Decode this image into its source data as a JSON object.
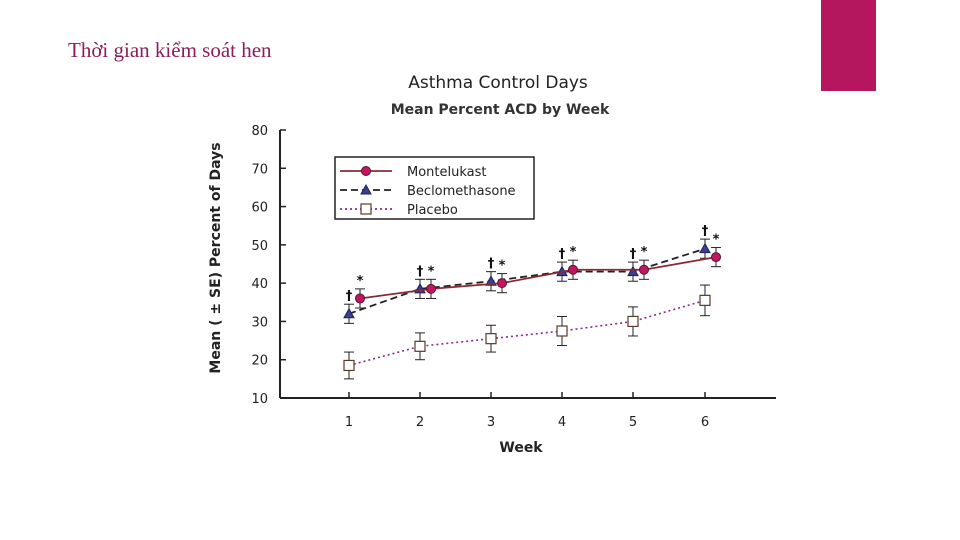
{
  "slide": {
    "title": "Thời gian kiểm soát hen",
    "accent_color": "#b5175f"
  },
  "chart_data": {
    "type": "line",
    "title": "Asthma Control Days",
    "subtitle": "Mean Percent ACD by Week",
    "xlabel": "Week",
    "ylabel": "Mean ( ± SE) Percent of Days",
    "categories": [
      "1",
      "2",
      "3",
      "4",
      "5",
      "6"
    ],
    "ylim": [
      10,
      80
    ],
    "yticks": [
      10,
      20,
      30,
      40,
      50,
      60,
      70,
      80
    ],
    "series": [
      {
        "name": "Montelukast",
        "values": [
          36,
          38.5,
          40,
          43.5,
          43.5,
          46.8
        ],
        "se": [
          2.5,
          2.5,
          2.5,
          2.5,
          2.5,
          2.5
        ],
        "color": "#8b2a35",
        "marker": "circle",
        "marker_color": "#c0175f",
        "line": "solid"
      },
      {
        "name": "Beclomethasone",
        "values": [
          32,
          38.5,
          40.5,
          43,
          43,
          49
        ],
        "se": [
          2.5,
          2.5,
          2.5,
          2.5,
          2.5,
          2.5
        ],
        "color": "#222222",
        "marker": "triangle",
        "marker_color": "#3a3f8f",
        "line": "dashed"
      },
      {
        "name": "Placebo",
        "values": [
          18.5,
          23.5,
          25.5,
          27.5,
          30,
          35.5
        ],
        "se": [
          3.5,
          3.5,
          3.5,
          3.8,
          3.8,
          4
        ],
        "color": "#8a2a8a",
        "marker": "square",
        "marker_color": "#ffffff",
        "line": "dotted"
      }
    ],
    "annotations": [
      {
        "week": "1",
        "montelukast": "*",
        "beclomethasone": "†"
      },
      {
        "week": "2",
        "montelukast": "*",
        "beclomethasone": "†"
      },
      {
        "week": "3",
        "montelukast": "*",
        "beclomethasone": "†"
      },
      {
        "week": "4",
        "montelukast": "*",
        "beclomethasone": "†"
      },
      {
        "week": "5",
        "montelukast": "*",
        "beclomethasone": "†"
      },
      {
        "week": "6",
        "montelukast": "*",
        "beclomethasone": "†"
      }
    ]
  }
}
